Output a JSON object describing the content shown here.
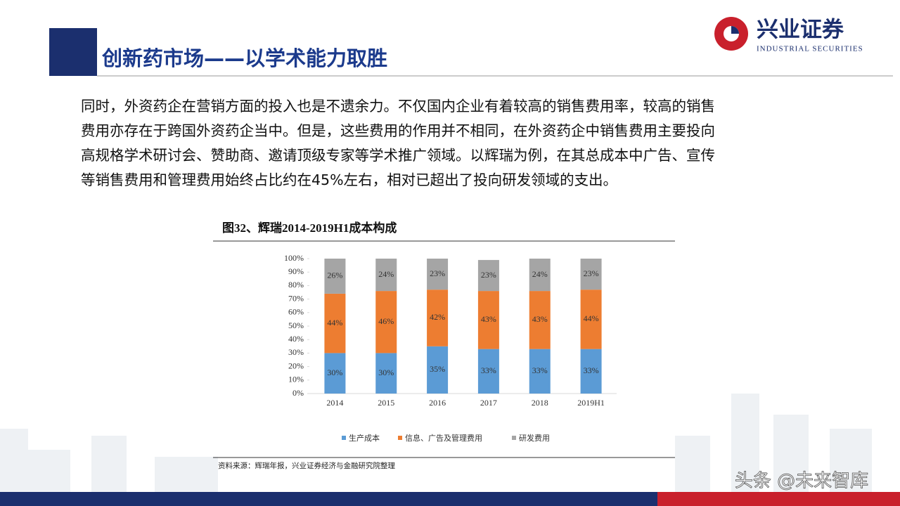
{
  "header": {
    "title": "创新药市场——以学术能力取胜",
    "logo_name": "兴业证券",
    "logo_en": "INDUSTRIAL SECURITIES"
  },
  "paragraph": {
    "lines": [
      "同时，外资药企在营销方面的投入也是不遗余力。不仅国内企业有着较高的销售费用率，较高的销售",
      "费用亦存在于跨国外资药企当中。但是，这些费用的作用并不相同，在外资药企中销售费用主要投向",
      "高规格学术研讨会、赞助商、邀请顶级专家等学术推广领域。以辉瑞为例，在其总成本中广告、宣传",
      "等销售费用和管理费用始终占比约在45%左右，相对已超出了投向研发领域的支出。"
    ]
  },
  "chart_data": {
    "type": "stacked-bar",
    "title": "图32、辉瑞2014-2019H1成本构成",
    "categories": [
      "2014",
      "2015",
      "2016",
      "2017",
      "2018",
      "2019H1"
    ],
    "series": [
      {
        "name": "生产成本",
        "color": "#5b9bd5",
        "values": [
          30,
          30,
          35,
          33,
          33,
          33
        ],
        "value_labels": [
          "30%",
          "30%",
          "35%",
          "33%",
          "33%",
          "33%"
        ]
      },
      {
        "name": "信息、广告及管理费用",
        "color": "#ed7d31",
        "values": [
          44,
          46,
          42,
          43,
          43,
          44
        ],
        "value_labels": [
          "44%",
          "46%",
          "42%",
          "43%",
          "43%",
          "44%"
        ]
      },
      {
        "name": "研发费用",
        "color": "#a5a5a5",
        "values": [
          26,
          24,
          23,
          23,
          24,
          23
        ],
        "value_labels": [
          "26%",
          "24%",
          "23%",
          "23%",
          "24%",
          "23%"
        ]
      }
    ],
    "ylim": [
      0,
      100
    ],
    "yticks": [
      {
        "value": 0,
        "label": "0%"
      },
      {
        "value": 10,
        "label": "10%"
      },
      {
        "value": 20,
        "label": "20%"
      },
      {
        "value": 30,
        "label": "30%"
      },
      {
        "value": 40,
        "label": "40%"
      },
      {
        "value": 50,
        "label": "50%"
      },
      {
        "value": 60,
        "label": "60%"
      },
      {
        "value": 70,
        "label": "70%"
      },
      {
        "value": 80,
        "label": "80%"
      },
      {
        "value": 90,
        "label": "90%"
      },
      {
        "value": 100,
        "label": "100%"
      }
    ],
    "source": "资料来源：辉瑞年报，兴业证券经济与金融研究院整理"
  },
  "watermark": "头条 @未来智库"
}
